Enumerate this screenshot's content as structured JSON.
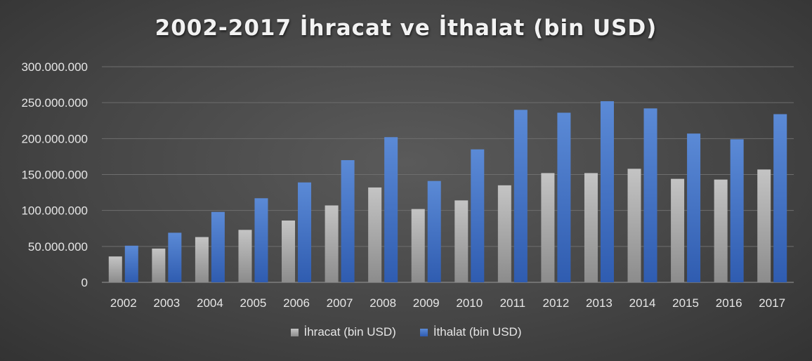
{
  "chart_data": {
    "type": "bar",
    "title": "2002-2017 İhracat ve İthalat (bin USD)",
    "categories": [
      "2002",
      "2003",
      "2004",
      "2005",
      "2006",
      "2007",
      "2008",
      "2009",
      "2010",
      "2011",
      "2012",
      "2013",
      "2014",
      "2015",
      "2016",
      "2017"
    ],
    "series": [
      {
        "name": "İhracat (bin USD)",
        "color": "#a6a6a6",
        "values": [
          36000000,
          47000000,
          63000000,
          73000000,
          86000000,
          107000000,
          132000000,
          102000000,
          114000000,
          135000000,
          152000000,
          152000000,
          158000000,
          144000000,
          143000000,
          157000000
        ]
      },
      {
        "name": "İthalat (bin USD)",
        "color": "#4472c4",
        "values": [
          51000000,
          69000000,
          98000000,
          117000000,
          139000000,
          170000000,
          202000000,
          141000000,
          185000000,
          240000000,
          236000000,
          252000000,
          242000000,
          207000000,
          199000000,
          234000000
        ]
      }
    ],
    "ylim": [
      0,
      300000000
    ],
    "yticks": [
      "0",
      "50.000.000",
      "100.000.000",
      "150.000.000",
      "200.000.000",
      "250.000.000",
      "300.000.000"
    ],
    "grid": true,
    "legend_position": "bottom"
  }
}
